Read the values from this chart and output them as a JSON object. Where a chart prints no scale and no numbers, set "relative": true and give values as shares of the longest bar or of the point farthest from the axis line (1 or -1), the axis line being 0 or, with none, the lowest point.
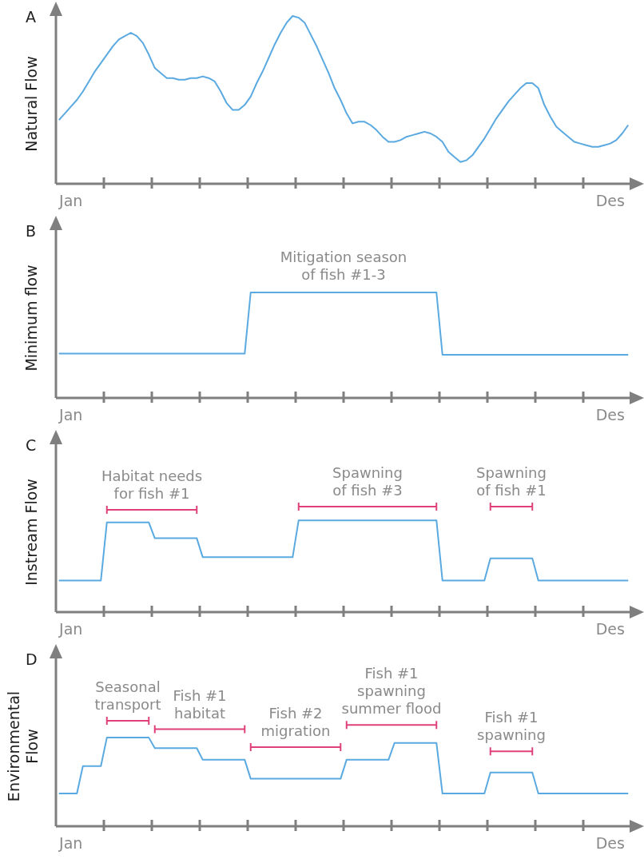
{
  "chart_data": [
    {
      "type": "line",
      "title": "A",
      "ylabel": "Natural Flow",
      "relative": true,
      "tick_labels": "x",
      "categories": [
        null,
        null,
        "Jan",
        null,
        null,
        null,
        null,
        null,
        null,
        null,
        null,
        null,
        null,
        null,
        null,
        null,
        null,
        null,
        null,
        null,
        null,
        null,
        null,
        null,
        null,
        null,
        null,
        null,
        null,
        null,
        null,
        null,
        null,
        null,
        null,
        null,
        null,
        null,
        null,
        null,
        null,
        null,
        null,
        null,
        null,
        null,
        null,
        null,
        null,
        null,
        null,
        null,
        null,
        null,
        null,
        null,
        null,
        null,
        null,
        null,
        null,
        null,
        null,
        null,
        null,
        null,
        null,
        null,
        null,
        null,
        null,
        null,
        null,
        null,
        null,
        null,
        null,
        null,
        null,
        null,
        null,
        null,
        null,
        null,
        null,
        null,
        null,
        null,
        null,
        null,
        null,
        null,
        "Des",
        null,
        null,
        null
      ],
      "color": "#5aa9e0",
      "values": [
        0.38,
        0.42,
        0.46,
        0.5,
        0.55,
        0.61,
        0.67,
        0.72,
        0.77,
        0.82,
        0.86,
        0.88,
        0.9,
        0.88,
        0.84,
        0.77,
        0.69,
        0.66,
        0.63,
        0.63,
        0.62,
        0.62,
        0.63,
        0.63,
        0.64,
        0.63,
        0.61,
        0.55,
        0.48,
        0.44,
        0.44,
        0.47,
        0.52,
        0.6,
        0.67,
        0.75,
        0.83,
        0.9,
        0.96,
        1,
        0.99,
        0.96,
        0.89,
        0.82,
        0.74,
        0.66,
        0.57,
        0.5,
        0.42,
        0.36,
        0.37,
        0.37,
        0.35,
        0.32,
        0.28,
        0.25,
        0.25,
        0.26,
        0.28,
        0.29,
        0.3,
        0.31,
        0.3,
        0.28,
        0.25,
        0.19,
        0.16,
        0.13,
        0.14,
        0.17,
        0.22,
        0.27,
        0.33,
        0.39,
        0.44,
        0.49,
        0.53,
        0.57,
        0.6,
        0.6,
        0.57,
        0.47,
        0.4,
        0.34,
        0.31,
        0.28,
        0.25,
        0.24,
        0.23,
        0.22,
        0.22,
        0.23,
        0.24,
        0.26,
        0.3,
        0.35
      ]
    },
    {
      "type": "line",
      "title": "B",
      "ylabel": "Minimum flow",
      "relative": true,
      "tick_labels": "x",
      "categories": [
        null,
        null,
        "Jan",
        null,
        null,
        null,
        null,
        null,
        null,
        null,
        null,
        null,
        null,
        null,
        null,
        null,
        null,
        null,
        null,
        null,
        null,
        null,
        null,
        null,
        null,
        null,
        null,
        null,
        null,
        null,
        null,
        null,
        null,
        null,
        null,
        null,
        null,
        null,
        null,
        null,
        null,
        null,
        null,
        null,
        null,
        null,
        null,
        null,
        null,
        null,
        null,
        null,
        null,
        null,
        null,
        null,
        null,
        null,
        null,
        null,
        null,
        null,
        null,
        null,
        null,
        null,
        null,
        null,
        null,
        null,
        null,
        null,
        null,
        null,
        null,
        null,
        null,
        null,
        null,
        null,
        null,
        null,
        null,
        null,
        null,
        null,
        null,
        null,
        null,
        null,
        null,
        null,
        "Des",
        null,
        null,
        null
      ],
      "color": "#5aa9e0",
      "values": [
        0.42,
        0.42,
        0.42,
        0.42,
        0.42,
        0.42,
        0.42,
        0.42,
        0.42,
        0.42,
        0.42,
        0.42,
        0.42,
        0.42,
        0.42,
        0.42,
        0.42,
        0.42,
        0.42,
        0.42,
        0.42,
        0.42,
        0.42,
        0.42,
        0.42,
        0.42,
        0.42,
        0.42,
        0.42,
        0.42,
        0.42,
        0.42,
        1,
        1,
        1,
        1,
        1,
        1,
        1,
        1,
        1,
        1,
        1,
        1,
        1,
        1,
        1,
        1,
        1,
        1,
        1,
        1,
        1,
        1,
        1,
        1,
        1,
        1,
        1,
        1,
        1,
        1,
        1,
        1,
        0.41,
        0.41,
        0.41,
        0.41,
        0.41,
        0.41,
        0.41,
        0.41,
        0.41,
        0.41,
        0.41,
        0.41,
        0.41,
        0.41,
        0.41,
        0.41,
        0.41,
        0.41,
        0.41,
        0.41,
        0.41,
        0.41,
        0.41,
        0.41,
        0.41,
        0.41,
        0.41,
        0.41,
        0.41,
        0.41,
        0.41,
        0.41
      ],
      "annotations": [
        "Mitigation season\nof fish #1-3"
      ]
    },
    {
      "type": "line",
      "title": "C",
      "ylabel": "Instream Flow",
      "relative": true,
      "tick_labels": "x",
      "categories": [
        null,
        null,
        "Jan",
        null,
        null,
        null,
        null,
        null,
        null,
        null,
        null,
        null,
        null,
        null,
        null,
        null,
        null,
        null,
        null,
        null,
        null,
        null,
        null,
        null,
        null,
        null,
        null,
        null,
        null,
        null,
        null,
        null,
        null,
        null,
        null,
        null,
        null,
        null,
        null,
        null,
        null,
        null,
        null,
        null,
        null,
        null,
        null,
        null,
        null,
        null,
        null,
        null,
        null,
        null,
        null,
        null,
        null,
        null,
        null,
        null,
        null,
        null,
        null,
        null,
        null,
        null,
        null,
        null,
        null,
        null,
        null,
        null,
        null,
        null,
        null,
        null,
        null,
        null,
        null,
        null,
        null,
        null,
        null,
        null,
        null,
        null,
        null,
        null,
        null,
        null,
        null,
        null,
        "Des",
        null,
        null,
        null
      ],
      "series": [
        {
          "color": "#5aa9e0",
          "values": [
            0.3,
            0.3,
            0.3,
            0.3,
            0.3,
            0.3,
            0.3,
            0.3,
            0.85,
            0.85,
            0.85,
            0.85,
            0.85,
            0.85,
            0.85,
            0.85,
            0.7,
            0.7,
            0.7,
            0.7,
            0.7,
            0.7,
            0.7,
            0.7,
            0.52,
            0.52,
            0.52,
            0.52,
            0.52,
            0.52,
            0.52,
            0.52,
            0.52,
            0.52,
            0.52,
            0.52,
            0.52,
            0.52,
            0.52,
            0.52,
            0.87,
            0.87,
            0.87,
            0.87,
            0.87,
            0.87,
            0.87,
            0.87,
            0.87,
            0.87,
            0.87,
            0.87,
            0.87,
            0.87,
            0.87,
            0.87,
            0.87,
            0.87,
            0.87,
            0.87,
            0.87,
            0.87,
            0.87,
            0.87,
            0.3,
            0.3,
            0.3,
            0.3,
            0.3,
            0.3,
            0.3,
            0.3,
            0.51,
            0.51,
            0.51,
            0.51,
            0.51,
            0.51,
            0.51,
            0.51,
            0.3,
            0.3,
            0.3,
            0.3,
            0.3,
            0.3,
            0.3,
            0.3,
            0.3,
            0.3,
            0.3,
            0.3,
            0.3,
            0.3,
            0.3,
            0.3
          ]
        },
        {
          "name": "Habitat needs\nfor fish #1",
          "color": "#e0407a",
          "values": [
            null,
            null,
            null,
            null,
            null,
            null,
            null,
            null,
            0.97,
            0.97,
            0.97,
            0.97,
            0.97,
            0.97,
            0.97,
            0.97,
            0.97,
            0.97,
            0.97,
            0.97,
            0.97,
            0.97,
            0.97,
            0.97,
            null,
            null,
            null,
            null,
            null,
            null,
            null,
            null,
            null,
            null,
            null,
            null,
            null,
            null,
            null,
            null,
            null,
            null,
            null,
            null,
            null,
            null,
            null,
            null,
            null,
            null,
            null,
            null,
            null,
            null,
            null,
            null,
            null,
            null,
            null,
            null,
            null,
            null,
            null,
            null,
            null,
            null,
            null,
            null,
            null,
            null,
            null,
            null,
            null,
            null,
            null,
            null,
            null,
            null,
            null,
            null,
            null,
            null,
            null,
            null,
            null,
            null,
            null,
            null,
            null,
            null,
            null,
            null,
            null,
            null,
            null,
            null
          ]
        },
        {
          "name": "Spawning\nof fish #3",
          "color": "#e0407a",
          "values": [
            null,
            null,
            null,
            null,
            null,
            null,
            null,
            null,
            null,
            null,
            null,
            null,
            null,
            null,
            null,
            null,
            null,
            null,
            null,
            null,
            null,
            null,
            null,
            null,
            null,
            null,
            null,
            null,
            null,
            null,
            null,
            null,
            null,
            null,
            null,
            null,
            null,
            null,
            null,
            null,
            1,
            1,
            1,
            1,
            1,
            1,
            1,
            1,
            1,
            1,
            1,
            1,
            1,
            1,
            1,
            1,
            1,
            1,
            1,
            1,
            1,
            1,
            1,
            1,
            null,
            null,
            null,
            null,
            null,
            null,
            null,
            null,
            null,
            null,
            null,
            null,
            null,
            null,
            null,
            null,
            null,
            null,
            null,
            null,
            null,
            null,
            null,
            null,
            null,
            null,
            null,
            null,
            null,
            null,
            null,
            null
          ]
        },
        {
          "name": "Spawning\nof fish #1",
          "color": "#e0407a",
          "values": [
            null,
            null,
            null,
            null,
            null,
            null,
            null,
            null,
            null,
            null,
            null,
            null,
            null,
            null,
            null,
            null,
            null,
            null,
            null,
            null,
            null,
            null,
            null,
            null,
            null,
            null,
            null,
            null,
            null,
            null,
            null,
            null,
            null,
            null,
            null,
            null,
            null,
            null,
            null,
            null,
            null,
            null,
            null,
            null,
            null,
            null,
            null,
            null,
            null,
            null,
            null,
            null,
            null,
            null,
            null,
            null,
            null,
            null,
            null,
            null,
            null,
            null,
            null,
            null,
            null,
            null,
            null,
            null,
            null,
            null,
            null,
            null,
            1,
            1,
            1,
            1,
            1,
            1,
            1,
            1,
            null,
            null,
            null,
            null,
            null,
            null,
            null,
            null,
            null,
            null,
            null,
            null,
            null,
            null,
            null,
            null
          ]
        }
      ]
    },
    {
      "type": "line",
      "title": "D",
      "ylabel": "Environmental\nFlow",
      "relative": true,
      "tick_labels": "x",
      "categories": [
        null,
        null,
        "Jan",
        null,
        null,
        null,
        null,
        null,
        null,
        null,
        null,
        null,
        null,
        null,
        null,
        null,
        null,
        null,
        null,
        null,
        null,
        null,
        null,
        null,
        null,
        null,
        null,
        null,
        null,
        null,
        null,
        null,
        null,
        null,
        null,
        null,
        null,
        null,
        null,
        null,
        null,
        null,
        null,
        null,
        null,
        null,
        null,
        null,
        null,
        null,
        null,
        null,
        null,
        null,
        null,
        null,
        null,
        null,
        null,
        null,
        null,
        null,
        null,
        null,
        null,
        null,
        null,
        null,
        null,
        null,
        null,
        null,
        null,
        null,
        null,
        null,
        null,
        null,
        null,
        null,
        null,
        null,
        null,
        null,
        null,
        null,
        null,
        null,
        null,
        null,
        null,
        null,
        "Des",
        null,
        null,
        null
      ],
      "series": [
        {
          "color": "#5aa9e0",
          "values": [
            0.31,
            0.31,
            0.31,
            0.31,
            0.57,
            0.57,
            0.57,
            0.57,
            0.84,
            0.84,
            0.84,
            0.84,
            0.84,
            0.84,
            0.84,
            0.84,
            0.74,
            0.74,
            0.74,
            0.74,
            0.74,
            0.74,
            0.74,
            0.74,
            0.63,
            0.63,
            0.63,
            0.63,
            0.63,
            0.63,
            0.63,
            0.63,
            0.45,
            0.45,
            0.45,
            0.45,
            0.45,
            0.45,
            0.45,
            0.45,
            0.45,
            0.45,
            0.45,
            0.45,
            0.45,
            0.45,
            0.45,
            0.45,
            0.63,
            0.63,
            0.63,
            0.63,
            0.63,
            0.63,
            0.63,
            0.63,
            0.79,
            0.79,
            0.79,
            0.79,
            0.79,
            0.79,
            0.79,
            0.79,
            0.31,
            0.31,
            0.31,
            0.31,
            0.31,
            0.31,
            0.31,
            0.31,
            0.51,
            0.51,
            0.51,
            0.51,
            0.51,
            0.51,
            0.51,
            0.51,
            0.31,
            0.31,
            0.31,
            0.31,
            0.31,
            0.31,
            0.31,
            0.31,
            0.31,
            0.31,
            0.31,
            0.31,
            0.31,
            0.31,
            0.31,
            0.31
          ]
        },
        {
          "name": "Seasonal\ntransport",
          "color": "#e0407a",
          "values": [
            null,
            null,
            null,
            null,
            null,
            null,
            null,
            null,
            1,
            1,
            1,
            1,
            1,
            1,
            1,
            1,
            null,
            null,
            null,
            null,
            null,
            null,
            null,
            null,
            null,
            null,
            null,
            null,
            null,
            null,
            null,
            null,
            null,
            null,
            null,
            null,
            null,
            null,
            null,
            null,
            null,
            null,
            null,
            null,
            null,
            null,
            null,
            null,
            null,
            null,
            null,
            null,
            null,
            null,
            null,
            null,
            null,
            null,
            null,
            null,
            null,
            null,
            null,
            null,
            null,
            null,
            null,
            null,
            null,
            null,
            null,
            null,
            null,
            null,
            null,
            null,
            null,
            null,
            null,
            null,
            null,
            null,
            null,
            null,
            null,
            null,
            null,
            null,
            null,
            null,
            null,
            null,
            null,
            null,
            null,
            null
          ]
        },
        {
          "name": "Fish #1\nhabitat",
          "color": "#e0407a",
          "values": [
            null,
            null,
            null,
            null,
            null,
            null,
            null,
            null,
            null,
            null,
            null,
            null,
            null,
            null,
            null,
            null,
            0.92,
            0.92,
            0.92,
            0.92,
            0.92,
            0.92,
            0.92,
            0.92,
            0.92,
            0.92,
            0.92,
            0.92,
            0.92,
            0.92,
            0.92,
            0.92,
            null,
            null,
            null,
            null,
            null,
            null,
            null,
            null,
            null,
            null,
            null,
            null,
            null,
            null,
            null,
            null,
            null,
            null,
            null,
            null,
            null,
            null,
            null,
            null,
            null,
            null,
            null,
            null,
            null,
            null,
            null,
            null,
            null,
            null,
            null,
            null,
            null,
            null,
            null,
            null,
            null,
            null,
            null,
            null,
            null,
            null,
            null,
            null,
            null,
            null,
            null,
            null,
            null,
            null,
            null,
            null,
            null,
            null,
            null,
            null,
            null,
            null,
            null,
            null
          ]
        },
        {
          "name": "Fish #2\nmigration",
          "color": "#e0407a",
          "values": [
            null,
            null,
            null,
            null,
            null,
            null,
            null,
            null,
            null,
            null,
            null,
            null,
            null,
            null,
            null,
            null,
            null,
            null,
            null,
            null,
            null,
            null,
            null,
            null,
            null,
            null,
            null,
            null,
            null,
            null,
            null,
            null,
            0.75,
            0.75,
            0.75,
            0.75,
            0.75,
            0.75,
            0.75,
            0.75,
            0.75,
            0.75,
            0.75,
            0.75,
            0.75,
            0.75,
            0.75,
            0.75,
            null,
            null,
            null,
            null,
            null,
            null,
            null,
            null,
            null,
            null,
            null,
            null,
            null,
            null,
            null,
            null,
            null,
            null,
            null,
            null,
            null,
            null,
            null,
            null,
            null,
            null,
            null,
            null,
            null,
            null,
            null,
            null,
            null,
            null,
            null,
            null,
            null,
            null,
            null,
            null,
            null,
            null,
            null,
            null,
            null,
            null,
            null,
            null
          ]
        },
        {
          "name": "Fish #1\nspawning\nsummer flood",
          "color": "#e0407a",
          "values": [
            null,
            null,
            null,
            null,
            null,
            null,
            null,
            null,
            null,
            null,
            null,
            null,
            null,
            null,
            null,
            null,
            null,
            null,
            null,
            null,
            null,
            null,
            null,
            null,
            null,
            null,
            null,
            null,
            null,
            null,
            null,
            null,
            null,
            null,
            null,
            null,
            null,
            null,
            null,
            null,
            null,
            null,
            null,
            null,
            null,
            null,
            null,
            null,
            0.96,
            0.96,
            0.96,
            0.96,
            0.96,
            0.96,
            0.96,
            0.96,
            0.96,
            0.96,
            0.96,
            0.96,
            0.96,
            0.96,
            0.96,
            0.96,
            null,
            null,
            null,
            null,
            null,
            null,
            null,
            null,
            null,
            null,
            null,
            null,
            null,
            null,
            null,
            null,
            null,
            null,
            null,
            null,
            null,
            null,
            null,
            null,
            null,
            null,
            null,
            null,
            null,
            null,
            null,
            null
          ]
        },
        {
          "name": "Fish #1\nspawning",
          "color": "#e0407a",
          "values": [
            null,
            null,
            null,
            null,
            null,
            null,
            null,
            null,
            null,
            null,
            null,
            null,
            null,
            null,
            null,
            null,
            null,
            null,
            null,
            null,
            null,
            null,
            null,
            null,
            null,
            null,
            null,
            null,
            null,
            null,
            null,
            null,
            null,
            null,
            null,
            null,
            null,
            null,
            null,
            null,
            null,
            null,
            null,
            null,
            null,
            null,
            null,
            null,
            null,
            null,
            null,
            null,
            null,
            null,
            null,
            null,
            null,
            null,
            null,
            null,
            null,
            null,
            null,
            null,
            null,
            null,
            null,
            null,
            null,
            null,
            null,
            null,
            0.71,
            0.71,
            0.71,
            0.71,
            0.71,
            0.71,
            0.71,
            0.71,
            null,
            null,
            null,
            null,
            null,
            null,
            null,
            null,
            null,
            null,
            null,
            null,
            null,
            null,
            null,
            null
          ]
        }
      ]
    }
  ]
}
